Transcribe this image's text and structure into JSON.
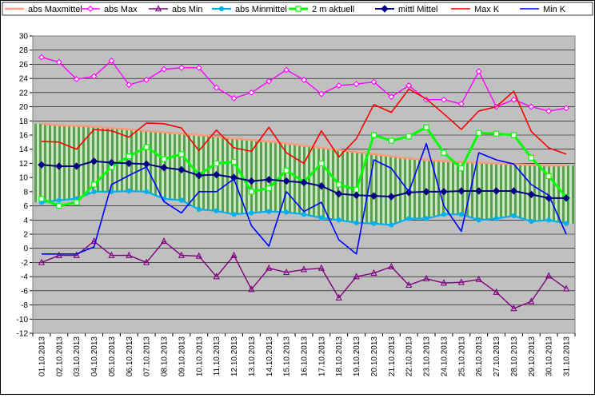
{
  "chart_data": {
    "type": "line",
    "title": "",
    "xlabel": "",
    "ylabel": "",
    "ylim": [
      -12,
      30
    ],
    "ytick_step": 2,
    "grid": true,
    "legend_position": "top",
    "background": "#c0c0c0",
    "categories": [
      "01.10.2013",
      "02.10.2013",
      "03.10.2013",
      "04.10.2013",
      "05.10.2013",
      "06.10.2013",
      "07.10.2013",
      "08.10.2013",
      "09.10.2013",
      "10.10.2013",
      "11.10.2013",
      "12.10.2013",
      "13.10.2013",
      "14.10.2013",
      "15.10.2013",
      "16.10.2013",
      "17.10.2013",
      "18.10.2013",
      "19.10.2013",
      "20.10.2013",
      "21.10.2013",
      "22.10.2013",
      "23.10.2013",
      "24.10.2013",
      "25.10.2013",
      "26.10.2013",
      "27.10.2013",
      "28.10.2013",
      "29.10.2013",
      "30.10.2013",
      "31.10.2013"
    ],
    "series": [
      {
        "name": "abs Maxmittel",
        "color": "#ff9a7a",
        "style": "band-top",
        "values": [
          17.6,
          17.4,
          17.3,
          17.2,
          17.0,
          16.8,
          16.6,
          16.4,
          16.2,
          16.0,
          15.8,
          15.5,
          15.3,
          15.1,
          14.8,
          14.5,
          14.2,
          13.9,
          13.6,
          13.3,
          13.0,
          12.7,
          12.5,
          12.3,
          12.2,
          12.1,
          12.0,
          11.9,
          11.8,
          11.7,
          11.7
        ]
      },
      {
        "name": "abs Max",
        "color": "#ff00ff",
        "marker": "diamond-open",
        "values": [
          27.0,
          26.3,
          23.9,
          24.3,
          26.5,
          23.1,
          23.8,
          25.3,
          25.5,
          25.5,
          22.7,
          21.2,
          22.0,
          23.6,
          25.2,
          23.8,
          21.8,
          23.0,
          23.2,
          23.5,
          21.4,
          23.0,
          21.0,
          21.0,
          20.4,
          25.0,
          20.0,
          21.0,
          20.0,
          19.4,
          19.8
        ]
      },
      {
        "name": "abs Min",
        "color": "#800080",
        "marker": "triangle-open",
        "values": [
          -2.0,
          -1.0,
          -1.0,
          1.0,
          -1.0,
          -1.0,
          -2.0,
          1.0,
          -1.0,
          -1.1,
          -4.0,
          -1.0,
          -5.8,
          -2.8,
          -3.4,
          -3.0,
          -2.8,
          -7.0,
          -4.0,
          -3.5,
          -2.6,
          -5.2,
          -4.3,
          -4.9,
          -4.8,
          -4.4,
          -6.2,
          -8.5,
          -7.5,
          -3.9,
          -5.7
        ]
      },
      {
        "name": "abs Minmittel",
        "color": "#00b0f0",
        "marker": "circle",
        "values": [
          6.5,
          6.8,
          7.0,
          8.0,
          8.0,
          8.1,
          8.0,
          7.0,
          6.8,
          5.5,
          5.3,
          4.8,
          5.0,
          5.2,
          5.1,
          4.8,
          4.3,
          4.0,
          3.6,
          3.5,
          3.3,
          4.2,
          4.2,
          4.8,
          4.8,
          4.0,
          4.2,
          4.6,
          3.8,
          4.0,
          3.5
        ]
      },
      {
        "name": "2 m aktuell",
        "color": "#00ff00",
        "marker": "square-open",
        "values": [
          7.0,
          6.0,
          6.5,
          9.0,
          11.5,
          13.0,
          14.3,
          12.6,
          13.3,
          10.4,
          12.0,
          12.2,
          8.0,
          8.5,
          11.0,
          9.4,
          12.0,
          9.0,
          8.3,
          16.0,
          15.2,
          15.8,
          17.1,
          13.5,
          11.3,
          16.3,
          16.2,
          16.0,
          12.8,
          10.2,
          7.2
        ]
      },
      {
        "name": "mittl Mittel",
        "color": "#000080",
        "marker": "diamond-filled",
        "values": [
          11.8,
          11.6,
          11.6,
          12.3,
          12.1,
          12.0,
          11.9,
          11.4,
          11.1,
          10.3,
          10.4,
          10.0,
          9.5,
          9.7,
          9.5,
          9.3,
          8.8,
          7.7,
          7.5,
          7.4,
          7.3,
          7.9,
          8.0,
          8.0,
          8.1,
          8.1,
          8.1,
          8.1,
          7.6,
          7.1,
          7.1
        ]
      },
      {
        "name": "Max K",
        "color": "#ff0000",
        "values": [
          15.1,
          15.0,
          14.0,
          16.8,
          16.6,
          15.7,
          17.7,
          17.6,
          17.0,
          13.8,
          16.7,
          14.2,
          13.7,
          17.1,
          13.5,
          12.0,
          16.6,
          12.9,
          15.5,
          20.3,
          19.2,
          22.5,
          21.1,
          19.0,
          16.8,
          19.4,
          20.0,
          22.2,
          16.5,
          14.2,
          13.3
        ]
      },
      {
        "name": "Min K",
        "color": "#0000ff",
        "values": [
          -0.8,
          -0.8,
          -0.8,
          0.2,
          9.0,
          10.3,
          11.5,
          6.6,
          5.0,
          8.0,
          8.0,
          9.8,
          3.2,
          0.3,
          8.0,
          5.2,
          6.5,
          1.2,
          -0.8,
          12.5,
          11.3,
          8.0,
          14.8,
          6.0,
          2.4,
          13.5,
          12.5,
          11.9,
          9.0,
          7.5,
          2.0
        ]
      }
    ]
  }
}
